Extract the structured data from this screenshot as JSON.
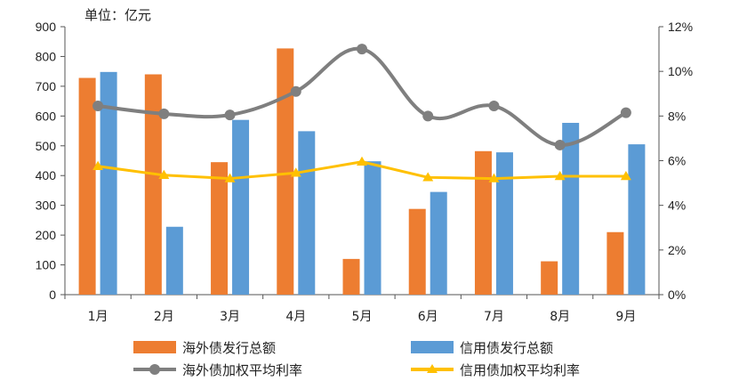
{
  "chart_data": {
    "type": "bar",
    "unit_label": "单位：亿元",
    "categories": [
      "1月",
      "2月",
      "3月",
      "4月",
      "5月",
      "6月",
      "7月",
      "8月",
      "9月"
    ],
    "ylim_left": [
      0,
      900
    ],
    "yticks_left": [
      0,
      100,
      200,
      300,
      400,
      500,
      600,
      700,
      800,
      900
    ],
    "ylim_right": [
      0,
      12
    ],
    "yticks_right": [
      "0%",
      "2%",
      "4%",
      "6%",
      "8%",
      "10%",
      "12%"
    ],
    "legend_position": "bottom",
    "grid": false,
    "series": [
      {
        "name": "海外债发行总额",
        "type": "bar",
        "axis": "left",
        "color": "#ED7D31",
        "values": [
          728,
          740,
          445,
          827,
          120,
          288,
          482,
          112,
          210
        ]
      },
      {
        "name": "信用债发行总额",
        "type": "bar",
        "axis": "left",
        "color": "#5B9BD5",
        "values": [
          748,
          228,
          587,
          549,
          448,
          345,
          478,
          577,
          505
        ]
      },
      {
        "name": "海外债加权平均利率",
        "type": "line",
        "axis": "right",
        "color": "#7F7F7F",
        "marker": "circle",
        "values": [
          8.45,
          8.1,
          8.05,
          9.1,
          11.0,
          8.0,
          8.45,
          6.7,
          8.15
        ]
      },
      {
        "name": "信用债加权平均利率",
        "type": "line",
        "axis": "right",
        "color": "#FFC000",
        "marker": "triangle",
        "values": [
          5.75,
          5.35,
          5.2,
          5.45,
          5.95,
          5.25,
          5.2,
          5.3,
          5.3
        ]
      }
    ]
  }
}
